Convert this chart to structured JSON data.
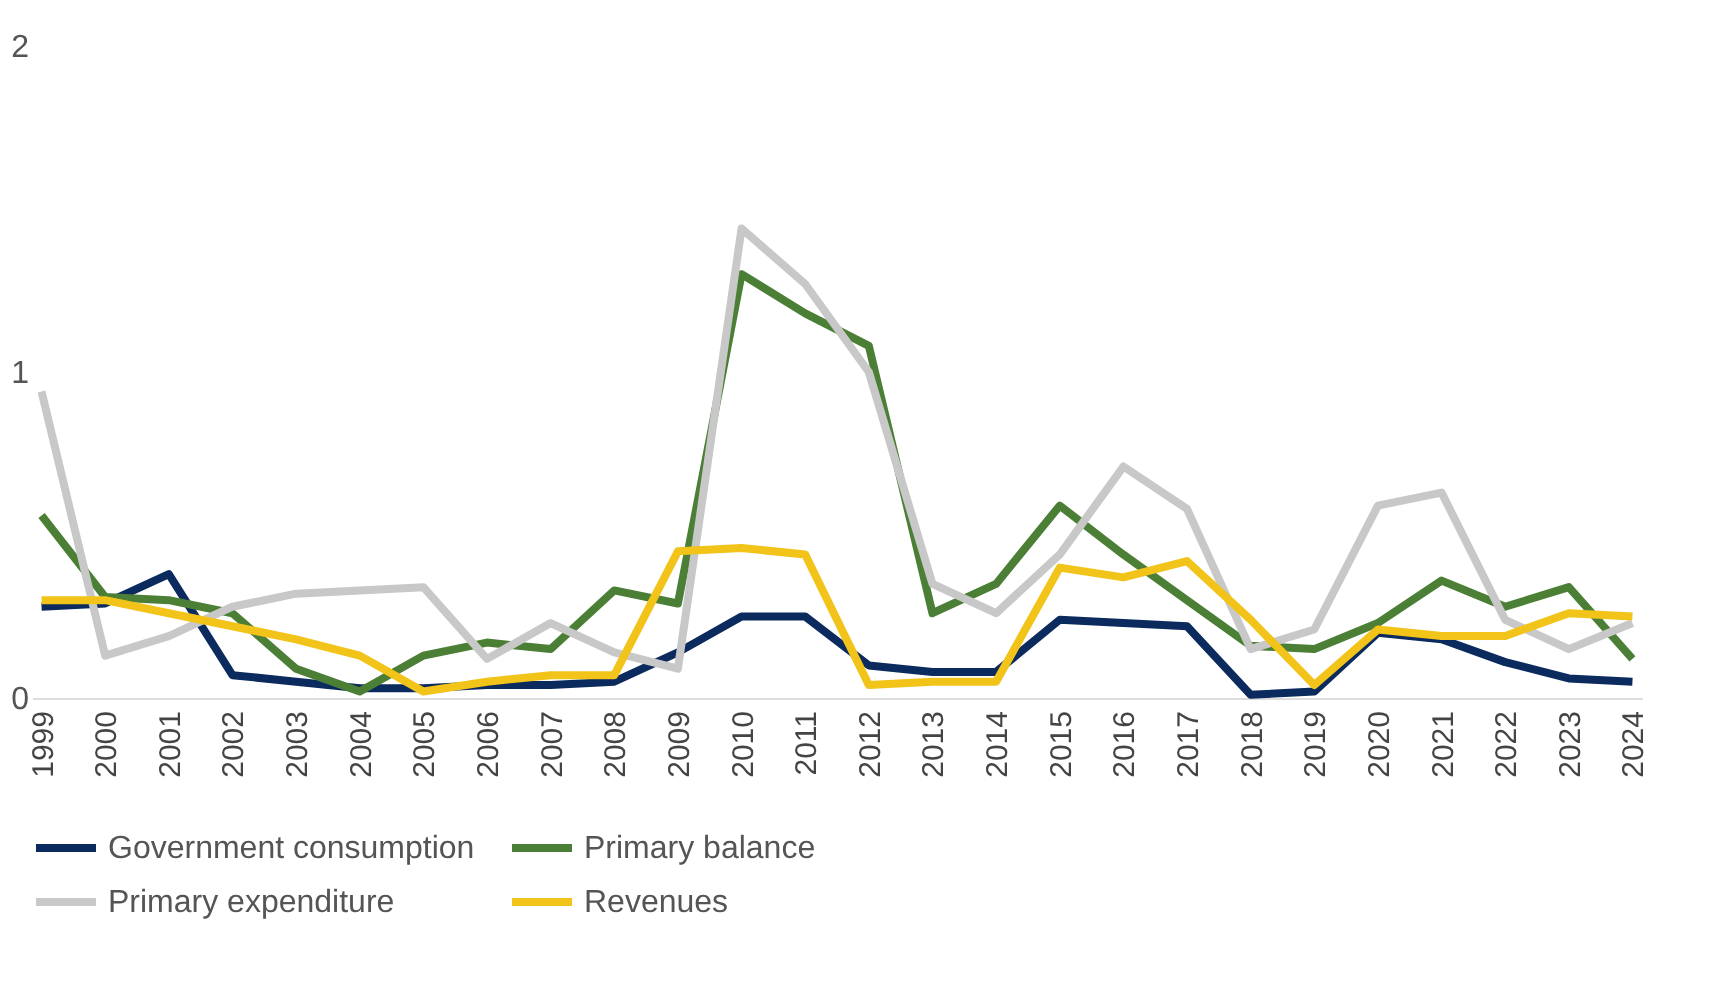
{
  "chart_data": {
    "type": "line",
    "categories": [
      "1999",
      "2000",
      "2001",
      "2002",
      "2003",
      "2004",
      "2005",
      "2006",
      "2007",
      "2008",
      "2009",
      "2010",
      "2011",
      "2012",
      "2013",
      "2014",
      "2015",
      "2016",
      "2017",
      "2018",
      "2019",
      "2020",
      "2021",
      "2022",
      "2023",
      "2024"
    ],
    "series": [
      {
        "name": "Government consumption",
        "color": "#0b2a5e",
        "values": [
          0.28,
          0.29,
          0.38,
          0.07,
          0.05,
          0.03,
          0.03,
          0.04,
          0.04,
          0.05,
          0.14,
          0.25,
          0.25,
          0.1,
          0.08,
          0.08,
          0.24,
          0.23,
          0.22,
          0.01,
          0.02,
          0.2,
          0.18,
          0.11,
          0.06,
          0.05
        ]
      },
      {
        "name": "Primary balance",
        "color": "#4a7f35",
        "values": [
          0.56,
          0.31,
          0.3,
          0.26,
          0.09,
          0.02,
          0.13,
          0.17,
          0.15,
          0.33,
          0.29,
          1.3,
          1.18,
          1.08,
          0.26,
          0.35,
          0.59,
          0.44,
          0.3,
          0.16,
          0.15,
          0.23,
          0.36,
          0.28,
          0.34,
          0.12
        ]
      },
      {
        "name": "Primary expenditure",
        "color": "#c8c8c8",
        "values": [
          0.94,
          0.13,
          0.19,
          0.28,
          0.32,
          0.33,
          0.34,
          0.12,
          0.23,
          0.14,
          0.09,
          1.44,
          1.27,
          1.0,
          0.35,
          0.26,
          0.44,
          0.71,
          0.58,
          0.15,
          0.21,
          0.59,
          0.63,
          0.24,
          0.15,
          0.23
        ]
      },
      {
        "name": "Revenues",
        "color": "#f2c318",
        "values": [
          0.3,
          0.3,
          0.26,
          0.22,
          0.18,
          0.13,
          0.02,
          0.05,
          0.07,
          0.07,
          0.45,
          0.46,
          0.44,
          0.04,
          0.05,
          0.05,
          0.4,
          0.37,
          0.42,
          0.24,
          0.04,
          0.21,
          0.19,
          0.19,
          0.26,
          0.25
        ]
      }
    ],
    "ylim": [
      0,
      2
    ],
    "yticks": [
      0,
      1,
      2
    ],
    "grid": false,
    "legend": "bottom",
    "line_style": "solid",
    "marker": "none"
  }
}
